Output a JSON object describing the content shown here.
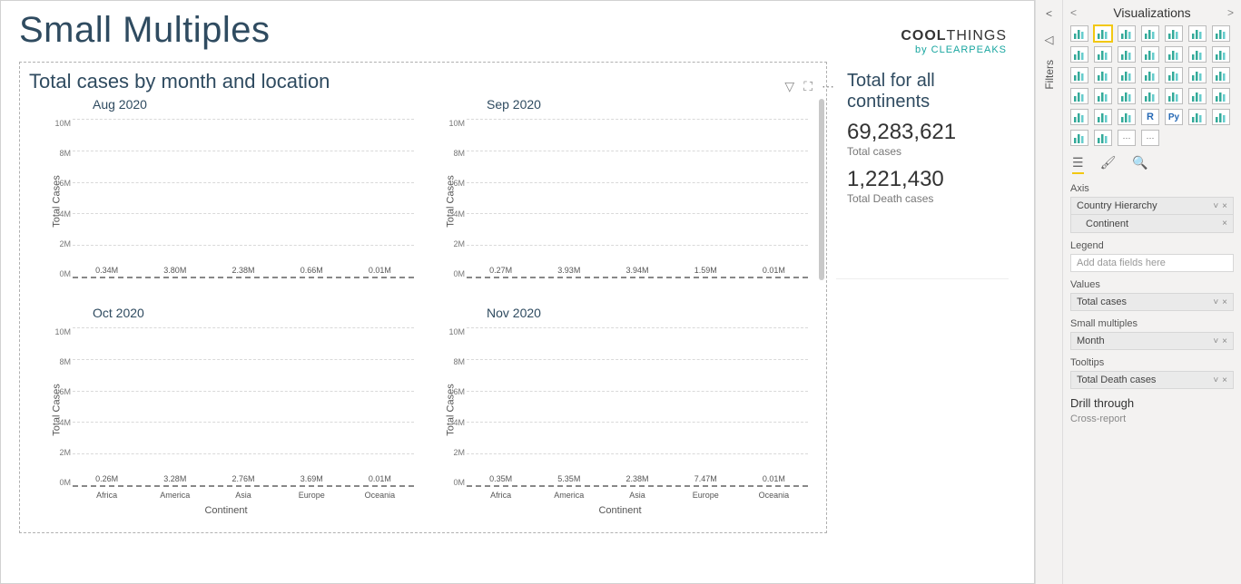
{
  "page": {
    "title": "Small Multiples",
    "brand_top_a": "COOL",
    "brand_top_b": "THINGS",
    "brand_bottom": "by CLEARPEAKS"
  },
  "chart": {
    "type": "bar-small-multiples",
    "title": "Total cases by month and location",
    "y_label": "Total Cases",
    "x_label": "Continent",
    "categories": [
      "Africa",
      "America",
      "Asia",
      "Europe",
      "Oceania"
    ],
    "ylim": [
      0,
      10
    ],
    "yticks": [
      "10M",
      "8M",
      "6M",
      "4M",
      "2M",
      "0M"
    ],
    "bar_colors": [
      "#0e8f8a",
      "#0e8f8a",
      "#2bb5af",
      "#7fcac6",
      "#b7e0de"
    ],
    "bg": "#ffffff",
    "grid_color": "#d9d9d9",
    "panels": [
      {
        "title": "Aug 2020",
        "values": [
          0.34,
          3.8,
          2.38,
          0.66,
          0.01
        ],
        "labels": [
          "0.34M",
          "3.80M",
          "2.38M",
          "0.66M",
          "0.01M"
        ]
      },
      {
        "title": "Sep 2020",
        "values": [
          0.27,
          3.93,
          3.94,
          1.59,
          0.01
        ],
        "labels": [
          "0.27M",
          "3.93M",
          "3.94M",
          "1.59M",
          "0.01M"
        ]
      },
      {
        "title": "Oct 2020",
        "values": [
          0.26,
          3.28,
          2.76,
          3.69,
          0.01
        ],
        "labels": [
          "0.26M",
          "3.28M",
          "2.76M",
          "3.69M",
          "0.01M"
        ]
      },
      {
        "title": "Nov 2020",
        "values": [
          0.35,
          5.35,
          2.38,
          7.47,
          0.01
        ],
        "labels": [
          "0.35M",
          "5.35M",
          "2.38M",
          "7.47M",
          "0.01M"
        ]
      }
    ]
  },
  "kpi": {
    "title": "Total for all continents",
    "value1": "69,283,621",
    "label1": "Total cases",
    "value2": "1,221,430",
    "label2": "Total Death cases"
  },
  "rail": {
    "filters_label": "Filters",
    "pane_title": "Visualizations",
    "sections": {
      "axis": {
        "label": "Axis",
        "field": "Country Hierarchy",
        "subfield": "Continent"
      },
      "legend": {
        "label": "Legend",
        "placeholder": "Add data fields here"
      },
      "values": {
        "label": "Values",
        "field": "Total cases"
      },
      "small_multiples": {
        "label": "Small multiples",
        "field": "Month"
      },
      "tooltips": {
        "label": "Tooltips",
        "field": "Total Death cases"
      },
      "drill": {
        "label": "Drill through"
      },
      "cross": {
        "label": "Cross-report"
      }
    }
  }
}
